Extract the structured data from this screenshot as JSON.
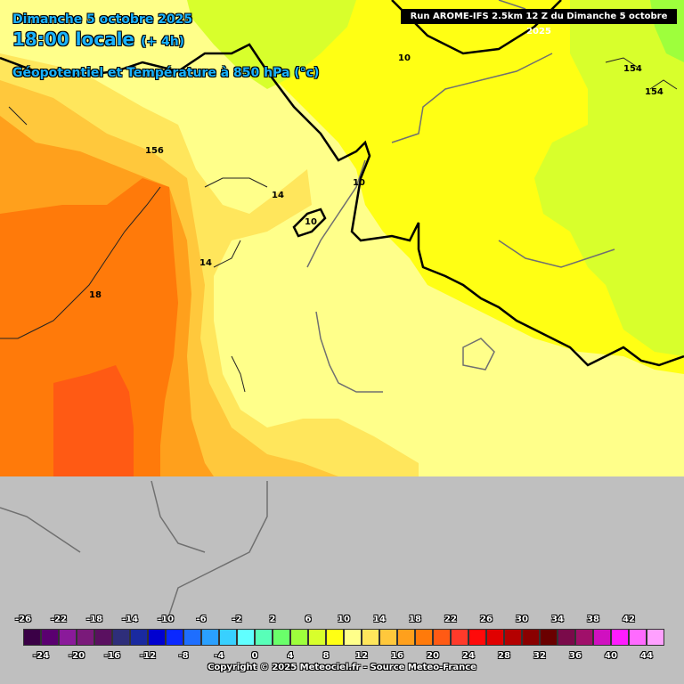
{
  "header": {
    "date": "Dimanche 5 octobre 2025",
    "time": "18:00 locale",
    "lead": "(+ 4h)",
    "parameter": "Géopotentiel et Température à 850 hPa (°c)",
    "run": "Run AROME-IFS 2.5km 12 Z du Dimanche 5 octobre 2025"
  },
  "contour_labels": [
    "10",
    "154",
    "154",
    "156",
    "14",
    "10",
    "10",
    "14",
    "18"
  ],
  "legend": {
    "top_labels": [
      "-26",
      "-22",
      "-18",
      "-14",
      "-10",
      "-6",
      "-2",
      "2",
      "6",
      "10",
      "14",
      "18",
      "22",
      "26",
      "30",
      "34",
      "38",
      "42"
    ],
    "bottom_labels": [
      "-24",
      "-20",
      "-16",
      "-12",
      "-8",
      "-4",
      "0",
      "4",
      "8",
      "12",
      "16",
      "20",
      "24",
      "28",
      "32",
      "36",
      "40",
      "44"
    ],
    "colors": [
      "#3a0046",
      "#5a0070",
      "#8a1a9a",
      "#7a1a7a",
      "#5a1060",
      "#2e2e7a",
      "#1a2aa0",
      "#0000d0",
      "#0a28ff",
      "#1e6eff",
      "#2aa0ff",
      "#38d0ff",
      "#60ffff",
      "#58ffb8",
      "#6aff6a",
      "#9eff3c",
      "#d8ff2c",
      "#ffff14",
      "#ffff8a",
      "#ffe65c",
      "#ffc83c",
      "#ffa01c",
      "#ff7a0a",
      "#ff5a14",
      "#ff3a2a",
      "#ff0a0a",
      "#e00000",
      "#b40000",
      "#8a0000",
      "#6a0000",
      "#7a0a4a",
      "#a0106a",
      "#d010c0",
      "#ff1cff",
      "#ff6aff",
      "#ffa0ff"
    ]
  },
  "copyright": "Copyright © 2025 Meteociel.fr - Source Meteo-France"
}
